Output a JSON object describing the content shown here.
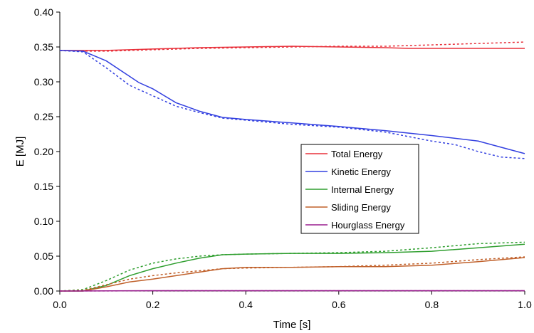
{
  "chart_data": {
    "type": "line",
    "title": "",
    "xlabel": "Time [s]",
    "ylabel": "E [MJ]",
    "xlim": [
      0,
      1.0
    ],
    "ylim": [
      0,
      0.4
    ],
    "x_ticks": [
      "0.0",
      "0.2",
      "0.4",
      "0.6",
      "0.8",
      "1.0"
    ],
    "y_ticks": [
      "0.00",
      "0.05",
      "0.10",
      "0.15",
      "0.20",
      "0.25",
      "0.30",
      "0.35",
      "0.40"
    ],
    "grid": false,
    "legend_position": "center-right",
    "series": [
      {
        "name": "Total Energy",
        "color": "#e8303a",
        "style": "solid",
        "x": [
          0.0,
          0.05,
          0.1,
          0.2,
          0.3,
          0.4,
          0.5,
          0.6,
          0.7,
          0.75,
          0.8,
          0.9,
          1.0
        ],
        "y": [
          0.345,
          0.345,
          0.345,
          0.347,
          0.349,
          0.35,
          0.351,
          0.35,
          0.349,
          0.348,
          0.348,
          0.348,
          0.348
        ]
      },
      {
        "name": "",
        "color": "#e8303a",
        "style": "dotted",
        "x": [
          0.0,
          0.05,
          0.1,
          0.2,
          0.3,
          0.4,
          0.5,
          0.6,
          0.7,
          0.8,
          0.9,
          1.0
        ],
        "y": [
          0.345,
          0.344,
          0.344,
          0.346,
          0.348,
          0.349,
          0.35,
          0.351,
          0.351,
          0.353,
          0.355,
          0.357
        ]
      },
      {
        "name": "Kinetic Energy",
        "color": "#3340e0",
        "style": "solid",
        "x": [
          0.0,
          0.05,
          0.1,
          0.15,
          0.17,
          0.2,
          0.25,
          0.3,
          0.35,
          0.4,
          0.5,
          0.6,
          0.7,
          0.8,
          0.9,
          0.95,
          1.0
        ],
        "y": [
          0.345,
          0.344,
          0.33,
          0.308,
          0.299,
          0.29,
          0.27,
          0.258,
          0.249,
          0.246,
          0.241,
          0.236,
          0.23,
          0.223,
          0.215,
          0.206,
          0.197
        ]
      },
      {
        "name": "",
        "color": "#3340e0",
        "style": "dotted",
        "x": [
          0.0,
          0.05,
          0.1,
          0.15,
          0.2,
          0.25,
          0.3,
          0.35,
          0.4,
          0.5,
          0.6,
          0.7,
          0.8,
          0.85,
          0.9,
          0.95,
          1.0
        ],
        "y": [
          0.345,
          0.343,
          0.32,
          0.295,
          0.28,
          0.265,
          0.256,
          0.248,
          0.245,
          0.239,
          0.235,
          0.228,
          0.215,
          0.21,
          0.2,
          0.192,
          0.19
        ]
      },
      {
        "name": "Internal Energy",
        "color": "#2e9e2e",
        "style": "solid",
        "x": [
          0.0,
          0.05,
          0.1,
          0.15,
          0.2,
          0.25,
          0.3,
          0.35,
          0.4,
          0.5,
          0.6,
          0.7,
          0.8,
          0.9,
          1.0
        ],
        "y": [
          0.0,
          0.0,
          0.008,
          0.022,
          0.032,
          0.04,
          0.047,
          0.052,
          0.053,
          0.054,
          0.054,
          0.055,
          0.057,
          0.062,
          0.067
        ]
      },
      {
        "name": "",
        "color": "#2e9e2e",
        "style": "dotted",
        "x": [
          0.0,
          0.05,
          0.1,
          0.15,
          0.2,
          0.25,
          0.3,
          0.35,
          0.4,
          0.5,
          0.6,
          0.7,
          0.8,
          0.9,
          1.0
        ],
        "y": [
          0.0,
          0.002,
          0.015,
          0.03,
          0.04,
          0.046,
          0.05,
          0.052,
          0.053,
          0.054,
          0.055,
          0.057,
          0.062,
          0.068,
          0.07
        ]
      },
      {
        "name": "Sliding Energy",
        "color": "#c0602a",
        "style": "solid",
        "x": [
          0.0,
          0.05,
          0.1,
          0.15,
          0.2,
          0.25,
          0.3,
          0.35,
          0.4,
          0.5,
          0.6,
          0.7,
          0.8,
          0.9,
          1.0
        ],
        "y": [
          0.0,
          0.0,
          0.006,
          0.013,
          0.017,
          0.022,
          0.027,
          0.032,
          0.034,
          0.034,
          0.035,
          0.035,
          0.037,
          0.042,
          0.048
        ]
      },
      {
        "name": "",
        "color": "#c0602a",
        "style": "dotted",
        "x": [
          0.0,
          0.05,
          0.1,
          0.15,
          0.2,
          0.25,
          0.3,
          0.35,
          0.4,
          0.5,
          0.6,
          0.7,
          0.8,
          0.9,
          1.0
        ],
        "y": [
          0.0,
          0.001,
          0.009,
          0.017,
          0.022,
          0.026,
          0.029,
          0.032,
          0.033,
          0.034,
          0.035,
          0.037,
          0.04,
          0.045,
          0.049
        ]
      },
      {
        "name": "Hourglass Energy",
        "color": "#9a1f8f",
        "style": "solid",
        "x": [
          0.0,
          0.2,
          0.4,
          0.6,
          0.8,
          1.0
        ],
        "y": [
          0.0,
          0.0005,
          0.0005,
          0.0005,
          0.0005,
          0.0005
        ]
      },
      {
        "name": "",
        "color": "#9a1f8f",
        "style": "dotted",
        "x": [
          0.0,
          0.2,
          0.4,
          0.6,
          0.8,
          1.0
        ],
        "y": [
          0.0,
          0.0003,
          0.0004,
          0.0004,
          0.0004,
          0.0004
        ]
      }
    ]
  }
}
